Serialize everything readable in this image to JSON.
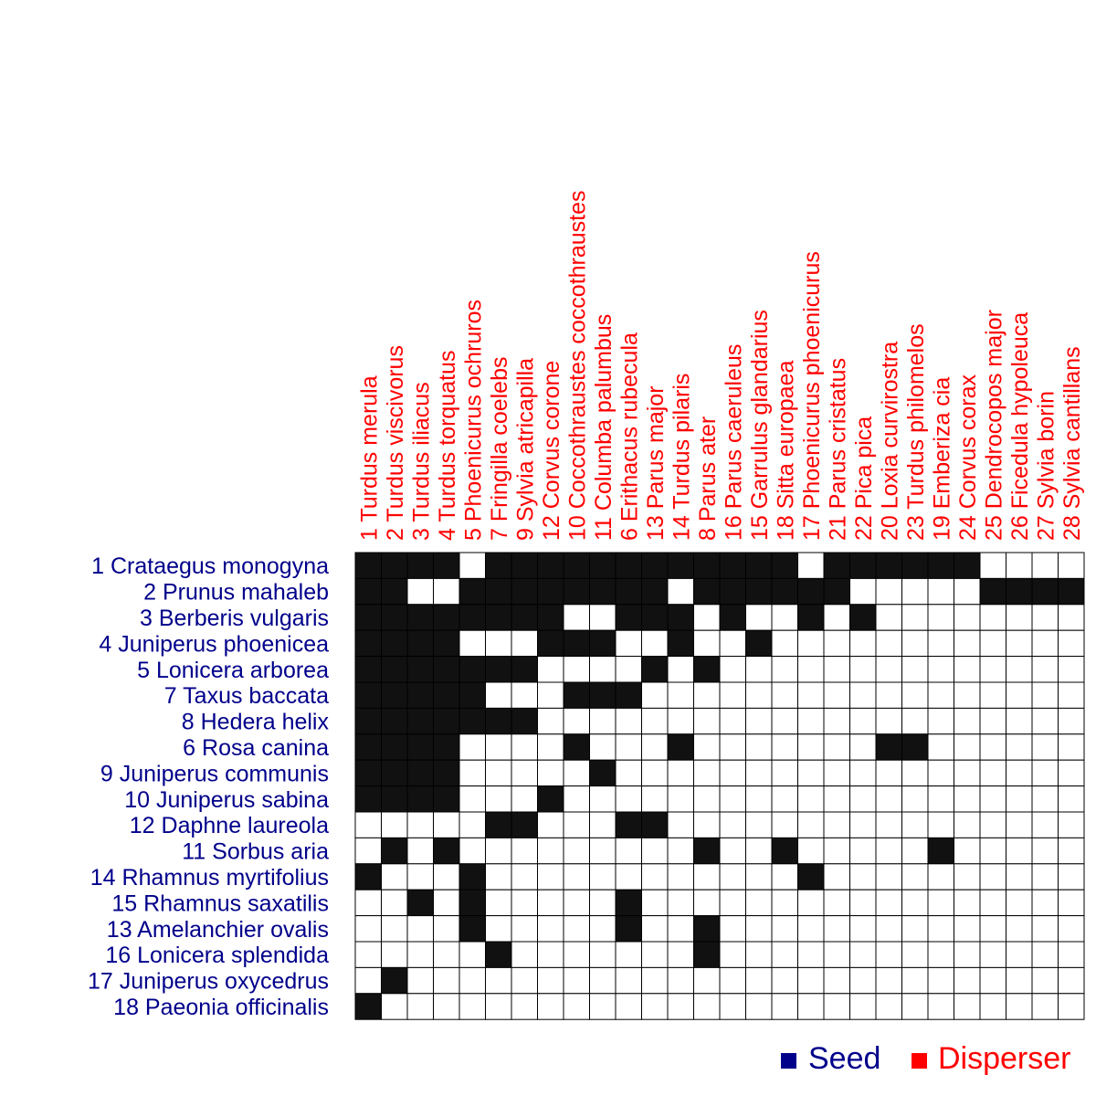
{
  "chart_data": {
    "type": "heatmap",
    "title": "",
    "rows": [
      "1 Crataegus monogyna",
      "2 Prunus mahaleb",
      "3 Berberis vulgaris",
      "4 Juniperus phoenicea",
      "5 Lonicera arborea",
      "7 Taxus baccata",
      "8 Hedera helix",
      "6 Rosa canina",
      "9 Juniperus communis",
      "10 Juniperus sabina",
      "12 Daphne laureola",
      "11 Sorbus aria",
      "14 Rhamnus myrtifolius",
      "15 Rhamnus saxatilis",
      "13 Amelanchier ovalis",
      "16 Lonicera splendida",
      "17 Juniperus oxycedrus",
      "18 Paeonia officinalis"
    ],
    "columns": [
      "1 Turdus merula",
      "2 Turdus viscivorus",
      "3 Turdus iliacus",
      "4 Turdus torquatus",
      "5 Phoenicurus ochruros",
      "7 Fringilla coelebs",
      "9 Sylvia atricapilla",
      "12 Corvus corone",
      "10 Coccothraustes coccothraustes",
      "11 Columba palumbus",
      "6 Erithacus rubecula",
      "13 Parus major",
      "14 Turdus pilaris",
      "8 Parus ater",
      "16 Parus caeruleus",
      "15 Garrulus glandarius",
      "18 Sitta europaea",
      "17 Phoenicurus phoenicurus",
      "21 Parus cristatus",
      "22 Pica pica",
      "20 Loxia curvirostra",
      "23 Turdus philomelos",
      "19 Emberiza cia",
      "24 Corvus corax",
      "25 Dendrocopos major",
      "26 Ficedula hypoleuca",
      "27 Sylvia borin",
      "28 Sylvia cantillans"
    ],
    "matrix": [
      [
        1,
        1,
        1,
        1,
        0,
        1,
        1,
        1,
        1,
        1,
        1,
        1,
        1,
        1,
        1,
        1,
        1,
        0,
        1,
        1,
        1,
        1,
        1,
        1,
        0,
        0,
        0,
        0
      ],
      [
        1,
        1,
        0,
        0,
        1,
        1,
        1,
        1,
        1,
        1,
        1,
        1,
        0,
        1,
        1,
        1,
        1,
        1,
        1,
        0,
        0,
        0,
        0,
        0,
        1,
        1,
        1,
        1
      ],
      [
        1,
        1,
        1,
        1,
        1,
        1,
        1,
        1,
        0,
        0,
        1,
        1,
        1,
        0,
        1,
        0,
        0,
        1,
        0,
        1,
        0,
        0,
        0,
        0,
        0,
        0,
        0,
        0
      ],
      [
        1,
        1,
        1,
        1,
        0,
        0,
        0,
        1,
        1,
        1,
        0,
        0,
        1,
        0,
        0,
        1,
        0,
        0,
        0,
        0,
        0,
        0,
        0,
        0,
        0,
        0,
        0,
        0
      ],
      [
        1,
        1,
        1,
        1,
        1,
        1,
        1,
        0,
        0,
        0,
        0,
        1,
        0,
        1,
        0,
        0,
        0,
        0,
        0,
        0,
        0,
        0,
        0,
        0,
        0,
        0,
        0,
        0
      ],
      [
        1,
        1,
        1,
        1,
        1,
        0,
        0,
        0,
        1,
        1,
        1,
        0,
        0,
        0,
        0,
        0,
        0,
        0,
        0,
        0,
        0,
        0,
        0,
        0,
        0,
        0,
        0,
        0
      ],
      [
        1,
        1,
        1,
        1,
        1,
        1,
        1,
        0,
        0,
        0,
        0,
        0,
        0,
        0,
        0,
        0,
        0,
        0,
        0,
        0,
        0,
        0,
        0,
        0,
        0,
        0,
        0,
        0
      ],
      [
        1,
        1,
        1,
        1,
        0,
        0,
        0,
        0,
        1,
        0,
        0,
        0,
        1,
        0,
        0,
        0,
        0,
        0,
        0,
        0,
        1,
        1,
        0,
        0,
        0,
        0,
        0,
        0
      ],
      [
        1,
        1,
        1,
        1,
        0,
        0,
        0,
        0,
        0,
        1,
        0,
        0,
        0,
        0,
        0,
        0,
        0,
        0,
        0,
        0,
        0,
        0,
        0,
        0,
        0,
        0,
        0,
        0
      ],
      [
        1,
        1,
        1,
        1,
        0,
        0,
        0,
        1,
        0,
        0,
        0,
        0,
        0,
        0,
        0,
        0,
        0,
        0,
        0,
        0,
        0,
        0,
        0,
        0,
        0,
        0,
        0,
        0
      ],
      [
        0,
        0,
        0,
        0,
        0,
        1,
        1,
        0,
        0,
        0,
        1,
        1,
        0,
        0,
        0,
        0,
        0,
        0,
        0,
        0,
        0,
        0,
        0,
        0,
        0,
        0,
        0,
        0
      ],
      [
        0,
        1,
        0,
        1,
        0,
        0,
        0,
        0,
        0,
        0,
        0,
        0,
        0,
        1,
        0,
        0,
        1,
        0,
        0,
        0,
        0,
        0,
        1,
        0,
        0,
        0,
        0,
        0
      ],
      [
        1,
        0,
        0,
        0,
        1,
        0,
        0,
        0,
        0,
        0,
        0,
        0,
        0,
        0,
        0,
        0,
        0,
        1,
        0,
        0,
        0,
        0,
        0,
        0,
        0,
        0,
        0,
        0
      ],
      [
        0,
        0,
        1,
        0,
        1,
        0,
        0,
        0,
        0,
        0,
        1,
        0,
        0,
        0,
        0,
        0,
        0,
        0,
        0,
        0,
        0,
        0,
        0,
        0,
        0,
        0,
        0,
        0
      ],
      [
        0,
        0,
        0,
        0,
        1,
        0,
        0,
        0,
        0,
        0,
        1,
        0,
        0,
        1,
        0,
        0,
        0,
        0,
        0,
        0,
        0,
        0,
        0,
        0,
        0,
        0,
        0,
        0
      ],
      [
        0,
        0,
        0,
        0,
        0,
        1,
        0,
        0,
        0,
        0,
        0,
        0,
        0,
        1,
        0,
        0,
        0,
        0,
        0,
        0,
        0,
        0,
        0,
        0,
        0,
        0,
        0,
        0
      ],
      [
        0,
        1,
        0,
        0,
        0,
        0,
        0,
        0,
        0,
        0,
        0,
        0,
        0,
        0,
        0,
        0,
        0,
        0,
        0,
        0,
        0,
        0,
        0,
        0,
        0,
        0,
        0,
        0
      ],
      [
        1,
        0,
        0,
        0,
        0,
        0,
        0,
        0,
        0,
        0,
        0,
        0,
        0,
        0,
        0,
        0,
        0,
        0,
        0,
        0,
        0,
        0,
        0,
        0,
        0,
        0,
        0,
        0
      ]
    ],
    "legend": [
      {
        "label": "Seed",
        "color": "#00008B"
      },
      {
        "label": "Disperser",
        "color": "#FF0000"
      }
    ],
    "legend_position": "bottom-right",
    "colors": {
      "filled": "#111111",
      "empty": "#ffffff",
      "grid": "#000000",
      "row_label": "#00008B",
      "col_label": "#FF0000"
    }
  }
}
